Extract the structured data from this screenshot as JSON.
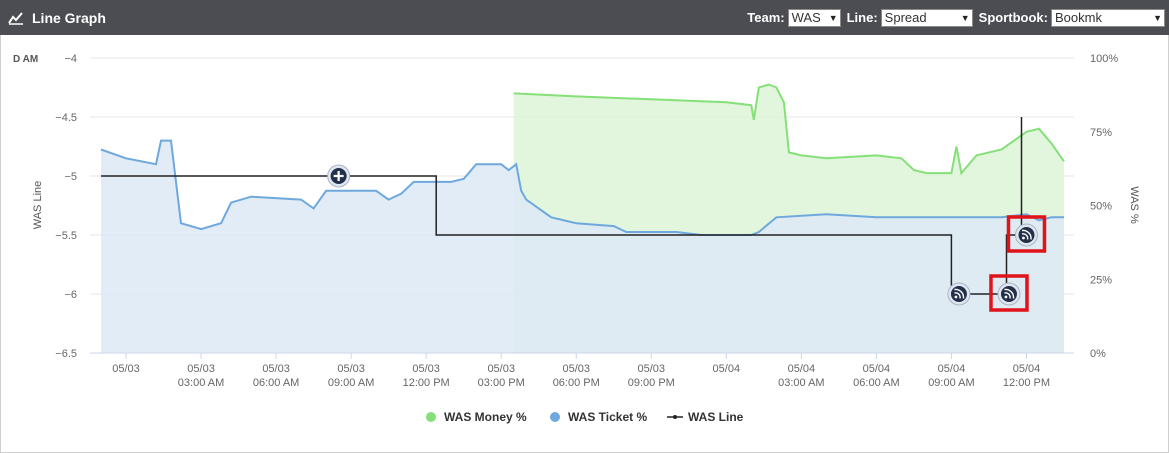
{
  "header": {
    "title": "Line Graph",
    "team_label": "Team:",
    "team_value": "WAS",
    "line_label": "Line:",
    "line_value": "Spread",
    "sportsbook_label": "Sportbook:",
    "sportsbook_value": "Bookmk"
  },
  "chart_data": {
    "type": "line",
    "left_axis": {
      "title": "WAS Line",
      "ticks": [
        "-4",
        "-4.5",
        "-5",
        "-5.5",
        "-6",
        "-6.5"
      ],
      "range": [
        -6.5,
        -4
      ]
    },
    "right_axis": {
      "title": "WAS %",
      "ticks": [
        "100%",
        "75%",
        "50%",
        "25%",
        "0%"
      ],
      "range": [
        0,
        100
      ]
    },
    "x_ticks": [
      [
        "05/03",
        ""
      ],
      [
        "05/03",
        "03:00 AM"
      ],
      [
        "05/03",
        "06:00 AM"
      ],
      [
        "05/03",
        "09:00 AM"
      ],
      [
        "05/03",
        "12:00 PM"
      ],
      [
        "05/03",
        "03:00 PM"
      ],
      [
        "05/03",
        "06:00 PM"
      ],
      [
        "05/03",
        "09:00 PM"
      ],
      [
        "05/04",
        ""
      ],
      [
        "05/04",
        "03:00 AM"
      ],
      [
        "05/04",
        "06:00 AM"
      ],
      [
        "05/04",
        "09:00 AM"
      ],
      [
        "05/04",
        "12:00 PM"
      ]
    ],
    "corner_label": "D AM",
    "x_hours_range": [
      -1,
      37.5
    ],
    "series": [
      {
        "name": "WAS Money %",
        "color": "#86e07a",
        "fill": "#dcf5d6",
        "points": [
          [
            15.5,
            88
          ],
          [
            18,
            87
          ],
          [
            21,
            86
          ],
          [
            24,
            85
          ],
          [
            25,
            84
          ],
          [
            25.1,
            79
          ],
          [
            25.3,
            90
          ],
          [
            25.7,
            91
          ],
          [
            26,
            90
          ],
          [
            26.3,
            85
          ],
          [
            26.5,
            68
          ],
          [
            27,
            67
          ],
          [
            28,
            66
          ],
          [
            30,
            67
          ],
          [
            31,
            66
          ],
          [
            31.5,
            62
          ],
          [
            32,
            61
          ],
          [
            33,
            61
          ],
          [
            33.2,
            70
          ],
          [
            33.4,
            61
          ],
          [
            34,
            67
          ],
          [
            35,
            69
          ],
          [
            36,
            75
          ],
          [
            36.5,
            76
          ],
          [
            37,
            71
          ],
          [
            37.5,
            65
          ]
        ]
      },
      {
        "name": "WAS Ticket %",
        "color": "#6ea8dc",
        "fill": "#dde9f6",
        "points": [
          [
            -1,
            69
          ],
          [
            0,
            66
          ],
          [
            1.2,
            64
          ],
          [
            1.4,
            72
          ],
          [
            1.8,
            72
          ],
          [
            2.2,
            44
          ],
          [
            3,
            42
          ],
          [
            3.8,
            44
          ],
          [
            4.2,
            51
          ],
          [
            5,
            53
          ],
          [
            7,
            52
          ],
          [
            7.5,
            49
          ],
          [
            8,
            55
          ],
          [
            10,
            55
          ],
          [
            10.5,
            52
          ],
          [
            11,
            54
          ],
          [
            11.5,
            58
          ],
          [
            13,
            58
          ],
          [
            13.5,
            59
          ],
          [
            14,
            64
          ],
          [
            15,
            64
          ],
          [
            15.3,
            62
          ],
          [
            15.6,
            64
          ],
          [
            15.8,
            55
          ],
          [
            16,
            52
          ],
          [
            17,
            46
          ],
          [
            18,
            44
          ],
          [
            19.5,
            43
          ],
          [
            20,
            41
          ],
          [
            22,
            41
          ],
          [
            23,
            40
          ],
          [
            24,
            40
          ],
          [
            25,
            40
          ],
          [
            25.3,
            41
          ],
          [
            26,
            46
          ],
          [
            28,
            47
          ],
          [
            30,
            46
          ],
          [
            32,
            46
          ],
          [
            33,
            46
          ],
          [
            35,
            46
          ],
          [
            36,
            47
          ],
          [
            36.5,
            45
          ],
          [
            37,
            46
          ],
          [
            37.5,
            46
          ]
        ]
      },
      {
        "name": "WAS Line",
        "color": "#222222",
        "points": [
          [
            -1,
            -5
          ],
          [
            12.4,
            -5
          ],
          [
            12.4,
            -5.5
          ],
          [
            33,
            -5.5
          ],
          [
            33,
            -6
          ],
          [
            35,
            -6
          ],
          [
            35.2,
            -6
          ],
          [
            35.2,
            -5.5
          ],
          [
            35.8,
            -5.5
          ],
          [
            35.8,
            -4.5
          ]
        ]
      }
    ],
    "legend": [
      {
        "label": "WAS Money %",
        "color": "#86e07a",
        "kind": "dot"
      },
      {
        "label": "WAS Ticket %",
        "color": "#6ea8dc",
        "kind": "dot"
      },
      {
        "label": "WAS Line",
        "color": "#222222",
        "kind": "line"
      }
    ],
    "annotations": [
      {
        "icon": "plus-icon",
        "x": 8.5,
        "y": -5,
        "highlighted": false
      },
      {
        "icon": "rss-icon",
        "x": 33.3,
        "y": -6,
        "highlighted": false
      },
      {
        "icon": "rss-icon",
        "x": 35.3,
        "y": -6,
        "highlighted": true
      },
      {
        "icon": "rss-icon",
        "x": 36,
        "y": -5.5,
        "highlighted": true
      }
    ]
  }
}
